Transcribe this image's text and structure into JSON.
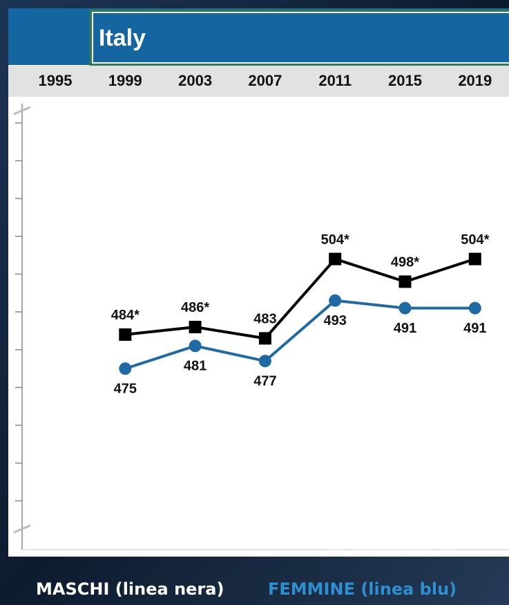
{
  "chart_data": {
    "type": "line",
    "title": "Italy",
    "categories": [
      "1995",
      "1999",
      "2003",
      "2007",
      "2011",
      "2015",
      "2019"
    ],
    "series": [
      {
        "name": "MASCHI (linea nera)",
        "color": "#000000",
        "values": [
          null,
          484,
          486,
          483,
          504,
          498,
          504
        ],
        "value_labels": [
          null,
          "484*",
          "486*",
          "483",
          "504*",
          "498*",
          "504*"
        ]
      },
      {
        "name": "FEMMINE (linea blu)",
        "color": "#1f6aa5",
        "values": [
          null,
          475,
          481,
          477,
          493,
          491,
          491
        ]
      }
    ],
    "ylim": [
      428,
      546
    ],
    "yticks": [
      440,
      450,
      460,
      470,
      480,
      490,
      500,
      510,
      520,
      530,
      540
    ]
  }
}
